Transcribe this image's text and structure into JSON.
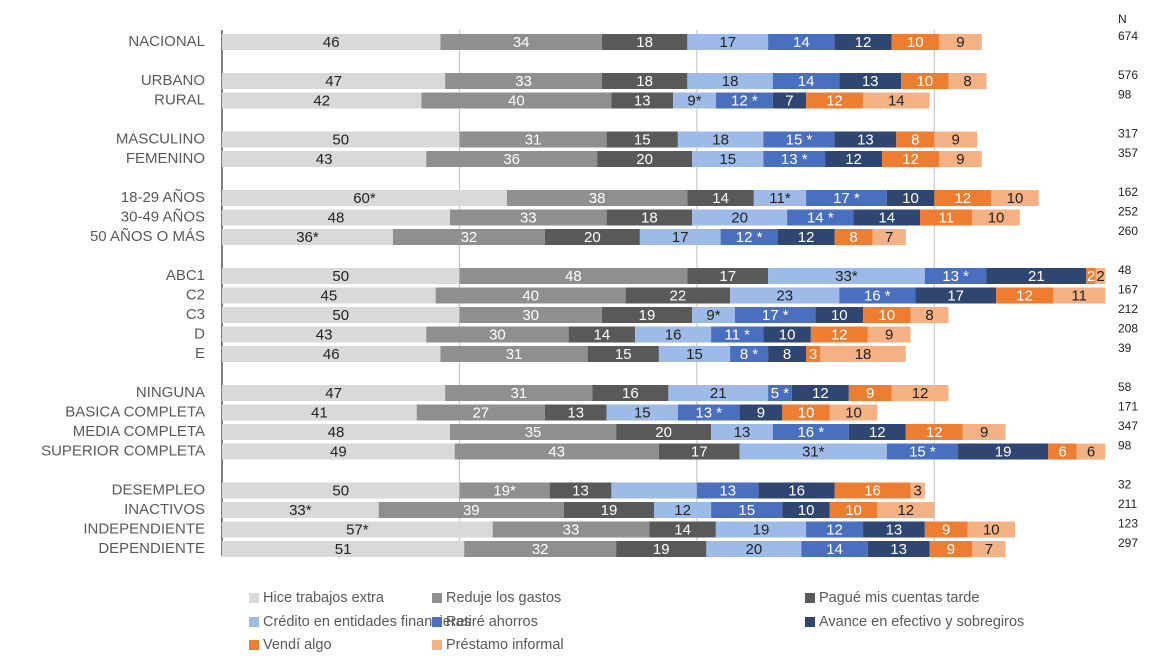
{
  "chart_data": {
    "type": "stacked_bar_horizontal",
    "n_header": "N",
    "categories": [
      "NACIONAL",
      "URBANO",
      "RURAL",
      "MASCULINO",
      "FEMENINO",
      "18-29 AÑOS",
      "30-49 AÑOS",
      "50 AÑOS O MÁS",
      "ABC1",
      "C2",
      "C3",
      "D",
      "E",
      "NINGUNA",
      "BASICA COMPLETA",
      "MEDIA COMPLETA",
      "SUPERIOR COMPLETA",
      "DESEMPLEO",
      "INACTIVOS",
      "INDEPENDIENTE",
      "DEPENDIENTE"
    ],
    "n": [
      674,
      576,
      98,
      317,
      357,
      162,
      252,
      260,
      48,
      167,
      212,
      208,
      39,
      58,
      171,
      347,
      98,
      32,
      211,
      123,
      297
    ],
    "xlim": [
      0,
      187
    ],
    "xticks": [
      0,
      50,
      100,
      150
    ],
    "grid": true,
    "legend": "bottom",
    "series": [
      {
        "name": "Hice trabajos extra",
        "color": "#d9d9d9",
        "label_color": "#222",
        "values": [
          46,
          47,
          42,
          50,
          43,
          60,
          48,
          36,
          50,
          45,
          50,
          43,
          46,
          47,
          41,
          48,
          49,
          50,
          33,
          57,
          51
        ],
        "value_labels": [
          "46",
          "47",
          "42",
          "50",
          "43",
          "60*",
          "48",
          "36*",
          "50",
          "45",
          "50",
          "43",
          "46",
          "47",
          "41",
          "48",
          "49",
          "50",
          "33*",
          "57*",
          "51"
        ]
      },
      {
        "name": "Reduje los gastos",
        "color": "#8f8f8f",
        "label_color": "#fff",
        "values": [
          34,
          33,
          40,
          31,
          36,
          38,
          33,
          32,
          48,
          40,
          30,
          30,
          31,
          31,
          27,
          35,
          43,
          19,
          39,
          33,
          32
        ],
        "value_labels": [
          "34",
          "33",
          "40",
          "31",
          "36",
          "38",
          "33",
          "32",
          "48",
          "40",
          "30",
          "30",
          "31",
          "31",
          "27",
          "35",
          "43",
          "19*",
          "39",
          "33",
          "32"
        ]
      },
      {
        "name": "Pagué mis cuentas tarde",
        "color": "#595959",
        "label_color": "#fff",
        "values": [
          18,
          18,
          13,
          15,
          20,
          14,
          18,
          20,
          17,
          22,
          19,
          14,
          15,
          16,
          13,
          20,
          17,
          13,
          19,
          14,
          19
        ]
      },
      {
        "name": "Crédito en entidades financieras",
        "color": "#9dbbe6",
        "label_color": "#222",
        "values": [
          17,
          18,
          9,
          18,
          15,
          11,
          20,
          17,
          33,
          23,
          9,
          16,
          15,
          21,
          15,
          13,
          31,
          18,
          12,
          19,
          20
        ],
        "value_labels": [
          "17",
          "18",
          "9*",
          "18",
          "15",
          "11*",
          "20",
          "17",
          "33*",
          "23",
          "9*",
          "16",
          "15",
          "21",
          "15",
          "13",
          "31*",
          null,
          "12",
          "19",
          "20"
        ]
      },
      {
        "name": "Retiré ahorros",
        "color": "#4a6fbf",
        "label_color": "#fff",
        "values": [
          14,
          14,
          12,
          15,
          13,
          17,
          14,
          12,
          13,
          16,
          17,
          11,
          8,
          5,
          13,
          16,
          15,
          13,
          15,
          12,
          14
        ],
        "value_labels": [
          "14",
          "14",
          "12 *",
          "15 *",
          "13 *",
          "17 *",
          "14 *",
          "12 *",
          "13 *",
          "16 *",
          "17 *",
          "11 *",
          "8 *",
          "5 *",
          "13 *",
          "16 *",
          "15 *",
          "13",
          "15",
          "12",
          "14"
        ]
      },
      {
        "name": "Avance en efectivo y sobregiros",
        "color": "#2e4670",
        "label_color": "#fff",
        "values": [
          12,
          13,
          7,
          13,
          12,
          10,
          14,
          12,
          21,
          17,
          10,
          10,
          8,
          12,
          9,
          12,
          19,
          16,
          10,
          13,
          13
        ]
      },
      {
        "name": "Vendí algo",
        "color": "#ed7d31",
        "label_color": "#fff",
        "values": [
          10,
          10,
          12,
          8,
          12,
          12,
          11,
          8,
          2,
          12,
          10,
          12,
          3,
          9,
          10,
          12,
          6,
          16,
          10,
          9,
          9
        ]
      },
      {
        "name": "Préstamo informal",
        "color": "#f4b183",
        "label_color": "#222",
        "values": [
          9,
          8,
          14,
          9,
          9,
          10,
          10,
          7,
          2,
          11,
          8,
          9,
          18,
          12,
          10,
          9,
          6,
          3,
          12,
          10,
          7
        ]
      }
    ]
  }
}
